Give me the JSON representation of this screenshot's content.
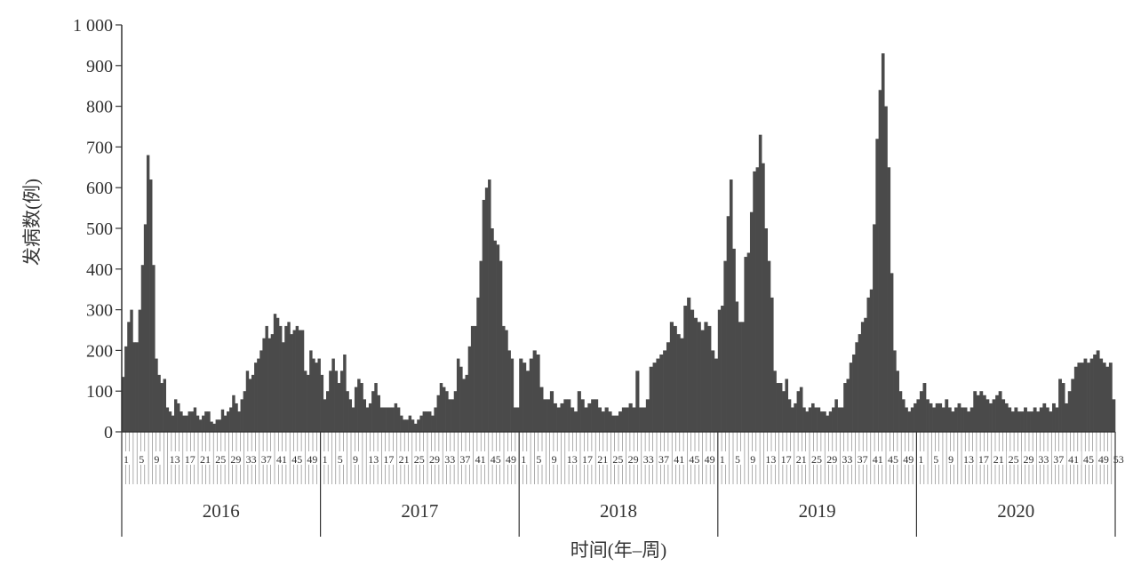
{
  "chart_data": {
    "type": "bar",
    "title": "",
    "ylabel": "发病数(例)",
    "xlabel": "时间(年–周)",
    "ylim": [
      0,
      1000
    ],
    "yticks": [
      0,
      100,
      200,
      300,
      400,
      500,
      600,
      700,
      800,
      900,
      1000
    ],
    "ytick_labels": [
      "0",
      "100",
      "200",
      "300",
      "400",
      "500",
      "600",
      "700",
      "800",
      "900",
      "1 000"
    ],
    "grid": false,
    "colors": {
      "bar": "#4a4a4a",
      "axis": "#333333"
    },
    "week_labels": [
      "1",
      "5",
      "9",
      "13",
      "17",
      "21",
      "25",
      "29",
      "33",
      "37",
      "41",
      "45",
      "49"
    ],
    "week_labels_2020": [
      "1",
      "5",
      "9",
      "13",
      "17",
      "21",
      "25",
      "29",
      "33",
      "37",
      "41",
      "45",
      "49",
      "53"
    ],
    "series": [
      {
        "year": "2016",
        "values": [
          135,
          210,
          270,
          300,
          220,
          220,
          300,
          410,
          510,
          680,
          620,
          410,
          180,
          140,
          120,
          130,
          60,
          50,
          40,
          80,
          70,
          50,
          40,
          40,
          50,
          50,
          60,
          40,
          30,
          40,
          50,
          50,
          25,
          20,
          30,
          30,
          55,
          40,
          50,
          60,
          90,
          70,
          50,
          80,
          100,
          150,
          130,
          140,
          170,
          180,
          200,
          230,
          260,
          230,
          240,
          290,
          280,
          260,
          220,
          260,
          270,
          240,
          250,
          260,
          250,
          250,
          150,
          140,
          200,
          180,
          170,
          180
        ]
      },
      {
        "year": "2017",
        "values": [
          140,
          80,
          100,
          150,
          180,
          150,
          120,
          150,
          190,
          100,
          80,
          60,
          110,
          130,
          120,
          80,
          60,
          70,
          100,
          120,
          90,
          60,
          60,
          60,
          60,
          60,
          70,
          60,
          40,
          30,
          30,
          40,
          30,
          20,
          30,
          40,
          50,
          50,
          50,
          40,
          60,
          90,
          120,
          110,
          100,
          80,
          80,
          100,
          180,
          160,
          130,
          140,
          210,
          260,
          260,
          330,
          420,
          570,
          600,
          620,
          500,
          470,
          460,
          420,
          260,
          250,
          200,
          180,
          60,
          60
        ]
      },
      {
        "year": "2018",
        "values": [
          180,
          170,
          150,
          180,
          200,
          190,
          110,
          80,
          80,
          100,
          70,
          60,
          70,
          80,
          80,
          60,
          50,
          100,
          80,
          60,
          70,
          80,
          80,
          60,
          50,
          60,
          50,
          40,
          40,
          50,
          60,
          60,
          70,
          60,
          150,
          60,
          60,
          80,
          160,
          170,
          180,
          190,
          200,
          220,
          270,
          260,
          240,
          230,
          310,
          330,
          300,
          280,
          270,
          250,
          270,
          260,
          200,
          180
        ]
      },
      {
        "year": "2019",
        "values": [
          300,
          310,
          420,
          530,
          620,
          450,
          320,
          270,
          270,
          430,
          440,
          540,
          640,
          650,
          730,
          660,
          500,
          420,
          330,
          150,
          120,
          120,
          100,
          130,
          80,
          60,
          70,
          100,
          110,
          60,
          50,
          60,
          70,
          60,
          60,
          50,
          50,
          40,
          50,
          60,
          80,
          60,
          60,
          120,
          130,
          170,
          190,
          220,
          240,
          270,
          280,
          330,
          350,
          510,
          720,
          840,
          930,
          800,
          650,
          390,
          200,
          150,
          100,
          80,
          60,
          50,
          60,
          70
        ]
      },
      {
        "year": "2020",
        "values": [
          80,
          100,
          120,
          80,
          70,
          60,
          70,
          70,
          60,
          80,
          60,
          50,
          60,
          70,
          60,
          60,
          50,
          60,
          100,
          90,
          100,
          90,
          80,
          70,
          80,
          90,
          100,
          80,
          70,
          60,
          50,
          60,
          50,
          50,
          60,
          50,
          50,
          60,
          50,
          60,
          70,
          60,
          50,
          70,
          60,
          130,
          120,
          70,
          100,
          130,
          160,
          170,
          170,
          180,
          170,
          180,
          190,
          200,
          180,
          170,
          160,
          170,
          80
        ]
      }
    ]
  }
}
